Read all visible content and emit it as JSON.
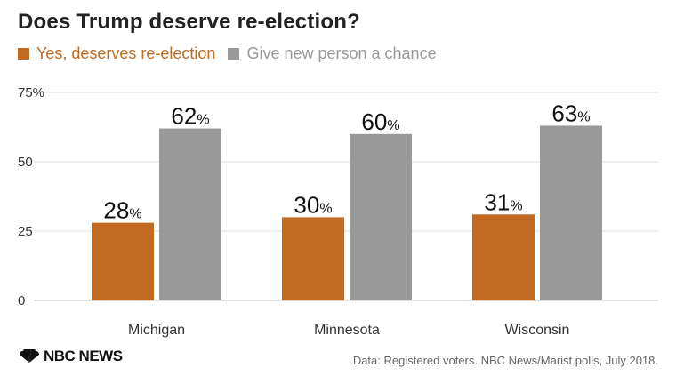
{
  "chart_data": {
    "type": "bar",
    "title": "Does Trump deserve re-election?",
    "categories": [
      "Michigan",
      "Minnesota",
      "Wisconsin"
    ],
    "series": [
      {
        "name": "Yes, deserves re-election",
        "values": [
          28,
          30,
          31
        ],
        "color": "#c06a22"
      },
      {
        "name": "Give new person a chance",
        "values": [
          62,
          60,
          63
        ],
        "color": "#999999"
      }
    ],
    "value_suffix": "%",
    "ylim": [
      0,
      75
    ],
    "yticks": [
      "0",
      "25",
      "50",
      "75%"
    ],
    "ytick_values": [
      0,
      25,
      50,
      75
    ],
    "grid": true,
    "legend_position": "top-left"
  },
  "footer": {
    "brand": "NBC NEWS",
    "source": "Data: Registered voters. NBC News/Marist polls, July 2018."
  },
  "colors": {
    "title": "#222222",
    "grid": "#dddddd",
    "axis_text": "#333333"
  },
  "icons": {
    "logo": "nbc-peacock-icon"
  }
}
